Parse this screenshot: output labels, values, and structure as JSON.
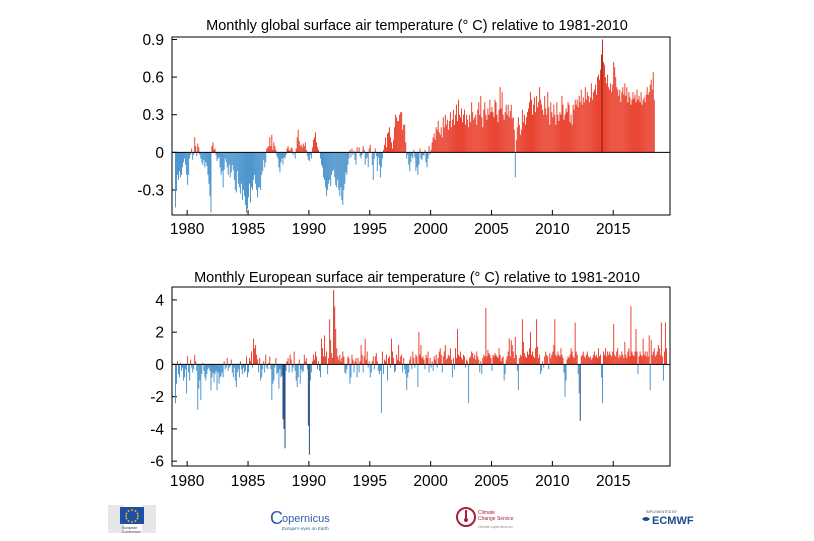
{
  "chart_data": [
    {
      "type": "bar",
      "title": "Monthly  global surface air temperature (° C) relative to 1981-2010",
      "xlabel": "",
      "ylabel": "",
      "x_start": "1979-01",
      "x_end": "2019-05",
      "xticks": [
        "1980",
        "1985",
        "1990",
        "1995",
        "2000",
        "2005",
        "2010",
        "2015"
      ],
      "yticks": [
        "0.9",
        "0.6",
        "0.3",
        "0",
        "-0.3"
      ],
      "ylim": [
        -0.5,
        0.92
      ],
      "colors": {
        "positive": "#e8321e",
        "positive_dark": "#b11a0c",
        "negative": "#3e8dc9",
        "negative_dark": "#123f79"
      },
      "values": [
        -0.44,
        -0.3,
        -0.18,
        -0.22,
        -0.15,
        -0.2,
        -0.18,
        -0.12,
        -0.08,
        -0.05,
        -0.1,
        -0.18,
        -0.26,
        -0.18,
        -0.05,
        -0.02,
        0.03,
        -0.06,
        -0.02,
        0.12,
        0.05,
        -0.03,
        0.07,
        0.04,
        -0.02,
        -0.05,
        -0.08,
        -0.1,
        -0.06,
        -0.12,
        -0.08,
        -0.11,
        -0.18,
        -0.25,
        -0.35,
        -0.48,
        0.05,
        0.08,
        0.02,
        0.03,
        -0.02,
        -0.07,
        -0.05,
        -0.04,
        -0.12,
        -0.18,
        -0.15,
        -0.28,
        -0.14,
        -0.05,
        -0.08,
        -0.12,
        -0.18,
        -0.1,
        -0.2,
        -0.16,
        -0.1,
        -0.14,
        -0.22,
        -0.3,
        -0.32,
        -0.15,
        -0.25,
        -0.28,
        -0.33,
        -0.25,
        -0.38,
        -0.3,
        -0.35,
        -0.42,
        -0.48,
        -0.45,
        -0.36,
        -0.25,
        -0.4,
        -0.28,
        -0.3,
        -0.22,
        -0.18,
        -0.25,
        -0.3,
        -0.36,
        -0.28,
        -0.28,
        -0.3,
        -0.18,
        -0.15,
        -0.06,
        -0.12,
        -0.08,
        0.03,
        0.04,
        0.05,
        0.12,
        0.05,
        0.14,
        0.02,
        0.08,
        0.05,
        0.02,
        -0.03,
        -0.05,
        -0.12,
        -0.16,
        -0.08,
        -0.05,
        -0.1,
        -0.04,
        -0.05,
        -0.02,
        0.03,
        0.05,
        0.02,
        0.01,
        0.04,
        0.03,
        -0.02,
        0.0,
        -0.05,
        0.03,
        0.12,
        0.18,
        0.09,
        0.05,
        0.06,
        0.04,
        0.07,
        0.05,
        0.08,
        0.02,
        -0.03,
        -0.06,
        -0.07,
        -0.02,
        -0.05,
        0.04,
        0.1,
        0.12,
        0.16,
        0.08,
        0.04,
        0.02,
        0.0,
        -0.05,
        -0.1,
        -0.12,
        -0.2,
        -0.22,
        -0.28,
        -0.35,
        -0.3,
        -0.25,
        -0.22,
        -0.27,
        -0.18,
        -0.15,
        -0.14,
        -0.2,
        -0.26,
        -0.28,
        -0.22,
        -0.3,
        -0.35,
        -0.28,
        -0.38,
        -0.42,
        -0.3,
        -0.25,
        -0.16,
        -0.18,
        -0.1,
        -0.05,
        0.02,
        -0.04,
        0.03,
        -0.02,
        0.01,
        -0.06,
        -0.1,
        0.04,
        0.0,
        0.04,
        -0.03,
        -0.05,
        -0.02,
        0.05,
        0.02,
        -0.1,
        -0.05,
        -0.04,
        -0.12,
        0.03,
        0.06,
        0.0,
        -0.1,
        -0.22,
        -0.05,
        0.03,
        -0.03,
        -0.15,
        -0.04,
        -0.1,
        -0.2,
        -0.12,
        -0.05,
        0.02,
        0.06,
        0.12,
        0.04,
        0.15,
        0.16,
        0.2,
        0.12,
        0.08,
        0.03,
        0.1,
        0.2,
        0.3,
        0.28,
        0.25,
        0.25,
        0.3,
        0.32,
        0.32,
        0.18,
        0.22,
        0.22,
        0.08,
        -0.05,
        -0.02,
        -0.1,
        -0.15,
        -0.08,
        -0.03,
        -0.05,
        0.02,
        -0.04,
        -0.15,
        -0.12,
        -0.18,
        -0.1,
        0.03,
        -0.05,
        -0.06,
        -0.02,
        -0.03,
        0.02,
        -0.08,
        -0.12,
        -0.05,
        0.05,
        -0.02,
        0.02,
        0.08,
        0.12,
        0.15,
        0.1,
        0.2,
        0.18,
        0.25,
        0.16,
        0.14,
        0.2,
        0.12,
        0.28,
        0.2,
        0.3,
        0.22,
        0.26,
        0.18,
        0.25,
        0.32,
        0.2,
        0.26,
        0.34,
        0.22,
        0.3,
        0.38,
        0.25,
        0.42,
        0.3,
        0.28,
        0.35,
        0.24,
        0.3,
        0.34,
        0.22,
        0.3,
        0.26,
        0.2,
        0.3,
        0.24,
        0.4,
        0.32,
        0.26,
        0.28,
        0.3,
        0.22,
        0.34,
        0.4,
        0.3,
        0.45,
        0.28,
        0.2,
        0.34,
        0.4,
        0.3,
        0.26,
        0.35,
        0.3,
        0.42,
        0.32,
        0.36,
        0.32,
        0.28,
        0.42,
        0.4,
        0.3,
        0.24,
        0.34,
        0.52,
        0.35,
        0.48,
        0.3,
        0.26,
        0.32,
        0.38,
        0.3,
        0.38,
        0.28,
        0.33,
        0.38,
        0.27,
        0.28,
        0.18,
        -0.2,
        0.1,
        0.2,
        0.28,
        0.22,
        0.14,
        0.18,
        0.34,
        0.24,
        0.3,
        0.22,
        0.28,
        0.32,
        0.35,
        0.4,
        0.48,
        0.42,
        0.3,
        0.38,
        0.44,
        0.32,
        0.45,
        0.36,
        0.4,
        0.52,
        0.42,
        0.38,
        0.34,
        0.3,
        0.45,
        0.35,
        0.3,
        0.48,
        0.36,
        0.22,
        0.4,
        0.32,
        0.28,
        0.38,
        0.3,
        0.22,
        0.4,
        0.3,
        0.25,
        0.32,
        0.3,
        0.45,
        0.38,
        0.26,
        0.3,
        0.35,
        0.32,
        0.4,
        0.38,
        0.24,
        0.3,
        0.22,
        0.38,
        0.34,
        0.42,
        0.38,
        0.42,
        0.36,
        0.45,
        0.4,
        0.5,
        0.38,
        0.44,
        0.4,
        0.52,
        0.42,
        0.48,
        0.45,
        0.4,
        0.44,
        0.55,
        0.42,
        0.48,
        0.5,
        0.54,
        0.46,
        0.6,
        0.62,
        0.58,
        0.66,
        0.78,
        0.9,
        0.72,
        0.7,
        0.6,
        0.55,
        0.62,
        0.52,
        0.5,
        0.55,
        0.48,
        0.54,
        0.72,
        0.68,
        0.6,
        0.52,
        0.5,
        0.45,
        0.5,
        0.4,
        0.48,
        0.52,
        0.46,
        0.55,
        0.45,
        0.52,
        0.4,
        0.48,
        0.44,
        0.38,
        0.42,
        0.48,
        0.43,
        0.46,
        0.4,
        0.5,
        0.42,
        0.45,
        0.4,
        0.48,
        0.38,
        0.42,
        0.44,
        0.4,
        0.46,
        0.52,
        0.46,
        0.48,
        0.54,
        0.58,
        0.5,
        0.64,
        0.42
      ]
    },
    {
      "type": "bar",
      "title": "Monthly  European surface air temperature (° C) relative to 1981-2010",
      "xlabel": "",
      "ylabel": "",
      "x_start": "1979-01",
      "x_end": "2019-05",
      "xticks": [
        "1980",
        "1985",
        "1990",
        "1995",
        "2000",
        "2005",
        "2010",
        "2015"
      ],
      "yticks": [
        "4",
        "2",
        "0",
        "-2",
        "-4",
        "-6"
      ],
      "ylim": [
        -6.3,
        4.8
      ],
      "colors": {
        "positive": "#e8321e",
        "positive_dark": "#b11a0c",
        "negative": "#3e8dc9",
        "negative_dark": "#123f79"
      },
      "values": [
        -2.4,
        -1.2,
        0.2,
        -0.6,
        -0.8,
        0.1,
        -0.4,
        -0.2,
        -1.0,
        -0.8,
        -0.3,
        -1.8,
        0.5,
        -0.5,
        -1.0,
        0.3,
        -0.2,
        -0.5,
        -0.3,
        0.6,
        0.2,
        -0.4,
        -2.8,
        -1.5,
        -1.0,
        -2.2,
        -0.6,
        0.1,
        -0.4,
        -0.8,
        -1.0,
        -0.6,
        -0.3,
        -0.2,
        -0.4,
        -1.6,
        -0.8,
        -0.5,
        -1.1,
        -0.6,
        -0.4,
        -1.6,
        -0.5,
        -1.2,
        -0.8,
        -0.7,
        -0.5,
        -0.8,
        0.2,
        -0.3,
        -0.2,
        0.4,
        -0.4,
        -0.2,
        -0.1,
        0.3,
        -0.5,
        -0.8,
        -0.2,
        -1.0,
        -1.4,
        -0.5,
        -0.3,
        -0.8,
        0.2,
        -0.3,
        -0.6,
        -0.2,
        -0.5,
        -0.4,
        0.5,
        -0.8,
        -0.5,
        0.4,
        0.2,
        0.8,
        -0.2,
        1.6,
        1.0,
        1.2,
        0.6,
        0.3,
        -0.5,
        0.4,
        -1.0,
        -0.8,
        -0.3,
        0.2,
        -0.5,
        0.6,
        -0.2,
        -0.3,
        0.1,
        0.5,
        -0.3,
        -2.2,
        -1.2,
        -1.0,
        -0.2,
        0.4,
        -0.6,
        -0.5,
        -1.5,
        -0.3,
        -0.8,
        -0.7,
        -3.4,
        -4.0,
        -5.2,
        -0.4,
        0.2,
        0.4,
        -0.5,
        0.6,
        0.3,
        -0.5,
        -0.2,
        0.8,
        -0.4,
        -1.0,
        -1.4,
        -0.8,
        0.3,
        -1.2,
        -0.3,
        -0.5,
        -0.4,
        0.6,
        0.2,
        0.4,
        -0.3,
        -3.8,
        -5.6,
        -1.0,
        -0.5,
        0.2,
        0.6,
        0.3,
        0.8,
        0.5,
        -0.3,
        0.2,
        -0.4,
        -0.8,
        1.6,
        1.0,
        0.5,
        1.8,
        0.5,
        0.8,
        -0.6,
        0.4,
        2.8,
        1.5,
        0.7,
        0.4,
        4.6,
        3.6,
        2.2,
        1.0,
        0.5,
        0.3,
        0.6,
        0.2,
        0.4,
        0.8,
        0.5,
        -0.5,
        -0.6,
        -0.3,
        0.5,
        0.4,
        -1.2,
        -0.8,
        0.6,
        0.3,
        -0.5,
        0.2,
        0.4,
        -0.8,
        0.4,
        -0.5,
        0.2,
        1.2,
        0.6,
        -0.5,
        0.5,
        1.6,
        0.3,
        0.8,
        -0.2,
        0.2,
        -0.8,
        -0.5,
        0.2,
        0.5,
        -0.3,
        0.5,
        0.7,
        0.2,
        -0.4,
        -0.6,
        -0.4,
        -3.0,
        0.8,
        -0.6,
        0.3,
        0.2,
        0.6,
        -1.0,
        0.4,
        0.5,
        -0.2,
        1.6,
        0.8,
        0.4,
        -0.5,
        -0.4,
        0.6,
        0.3,
        1.2,
        0.2,
        0.5,
        0.6,
        -0.5,
        0.4,
        -0.3,
        -0.6,
        -1.6,
        -0.8,
        -0.5,
        0.3,
        0.5,
        -0.3,
        0.8,
        0.4,
        -0.2,
        0.6,
        0.5,
        -1.4,
        2.0,
        0.6,
        1.2,
        0.4,
        0.5,
        0.3,
        -0.3,
        0.6,
        0.4,
        0.8,
        -0.5,
        0.4,
        -0.2,
        0.2,
        -0.4,
        0.5,
        0.3,
        0.6,
        -0.2,
        0.4,
        0.8,
        1.0,
        0.6,
        -0.5,
        0.5,
        0.8,
        1.2,
        0.3,
        0.4,
        0.6,
        0.5,
        1.0,
        0.3,
        -0.8,
        0.4,
        -0.3,
        1.0,
        0.4,
        2.2,
        0.6,
        0.5,
        0.8,
        0.4,
        0.3,
        0.6,
        0.5,
        -0.2,
        0.3,
        0.2,
        -2.4,
        0.4,
        0.5,
        0.8,
        0.7,
        0.4,
        0.6,
        0.3,
        0.8,
        0.5,
        0.3,
        -0.5,
        0.2,
        -0.6,
        0.4,
        0.6,
        0.5,
        3.5,
        0.5,
        0.9,
        0.7,
        0.6,
        0.4,
        -0.4,
        0.6,
        0.5,
        0.7,
        0.6,
        0.5,
        0.4,
        1.0,
        0.6,
        0.2,
        0.4,
        0.5,
        -1.0,
        -0.6,
        0.3,
        0.5,
        0.8,
        1.6,
        0.5,
        1.5,
        1.2,
        0.8,
        0.4,
        1.7,
        0.6,
        -0.4,
        -1.6,
        0.4,
        0.6,
        0.5,
        2.8,
        1.4,
        0.7,
        0.5,
        0.4,
        0.8,
        0.6,
        1.0,
        2.0,
        0.6,
        0.8,
        0.5,
        0.4,
        1.0,
        2.8,
        1.1,
        0.4,
        0.6,
        -0.6,
        -0.4,
        0.2,
        -0.2,
        0.5,
        0.8,
        0.6,
        0.5,
        -0.3,
        0.7,
        0.4,
        0.6,
        0.8,
        1.2,
        2.8,
        0.6,
        0.5,
        0.8,
        0.6,
        0.5,
        1.0,
        0.6,
        0.4,
        -0.5,
        -2.0,
        -1.0,
        0.3,
        0.5,
        0.4,
        0.6,
        1.0,
        0.8,
        0.5,
        0.4,
        2.6,
        0.8,
        0.6,
        -0.6,
        -1.8,
        -3.5,
        0.5,
        0.6,
        0.8,
        0.5,
        0.4,
        0.6,
        0.8,
        0.5,
        0.4,
        0.5,
        0.3,
        0.4,
        0.6,
        0.8,
        0.5,
        0.6,
        0.4,
        1.0,
        0.5,
        0.6,
        -0.8,
        -2.4,
        0.8,
        0.6,
        1.0,
        0.5,
        0.8,
        0.6,
        0.8,
        0.6,
        0.5,
        0.8,
        2.5,
        0.6,
        0.5,
        0.8,
        1.0,
        0.4,
        0.6,
        0.5,
        0.8,
        0.6,
        0.4,
        1.4,
        0.6,
        0.4,
        0.8,
        1.0,
        0.5,
        3.6,
        0.8,
        0.6,
        0.5,
        0.8,
        2.2,
        0.8,
        -0.6,
        0.5,
        0.8,
        0.6,
        0.5,
        1.6,
        0.6,
        0.8,
        0.5,
        0.8,
        0.5,
        1.8,
        -1.6,
        1.5,
        0.6,
        0.8,
        1.0,
        0.5,
        0.6,
        0.8,
        1.2,
        1.0,
        0.6,
        2.6,
        0.5,
        -1.0,
        0.8,
        2.6,
        1.0
      ]
    }
  ],
  "logos": {
    "eu": {
      "label_line1": "European",
      "label_line2": "Commission"
    },
    "copernicus": {
      "name": "opernicus",
      "initial": "C",
      "tagline": "Europe's eyes on Earth"
    },
    "c3s": {
      "label_line1": "Climate",
      "label_line2": "Change Service",
      "tagline": "Climate.copernicus.eu"
    },
    "ecmwf": {
      "small": "IMPLEMENTED BY",
      "name": "ECMWF"
    }
  }
}
